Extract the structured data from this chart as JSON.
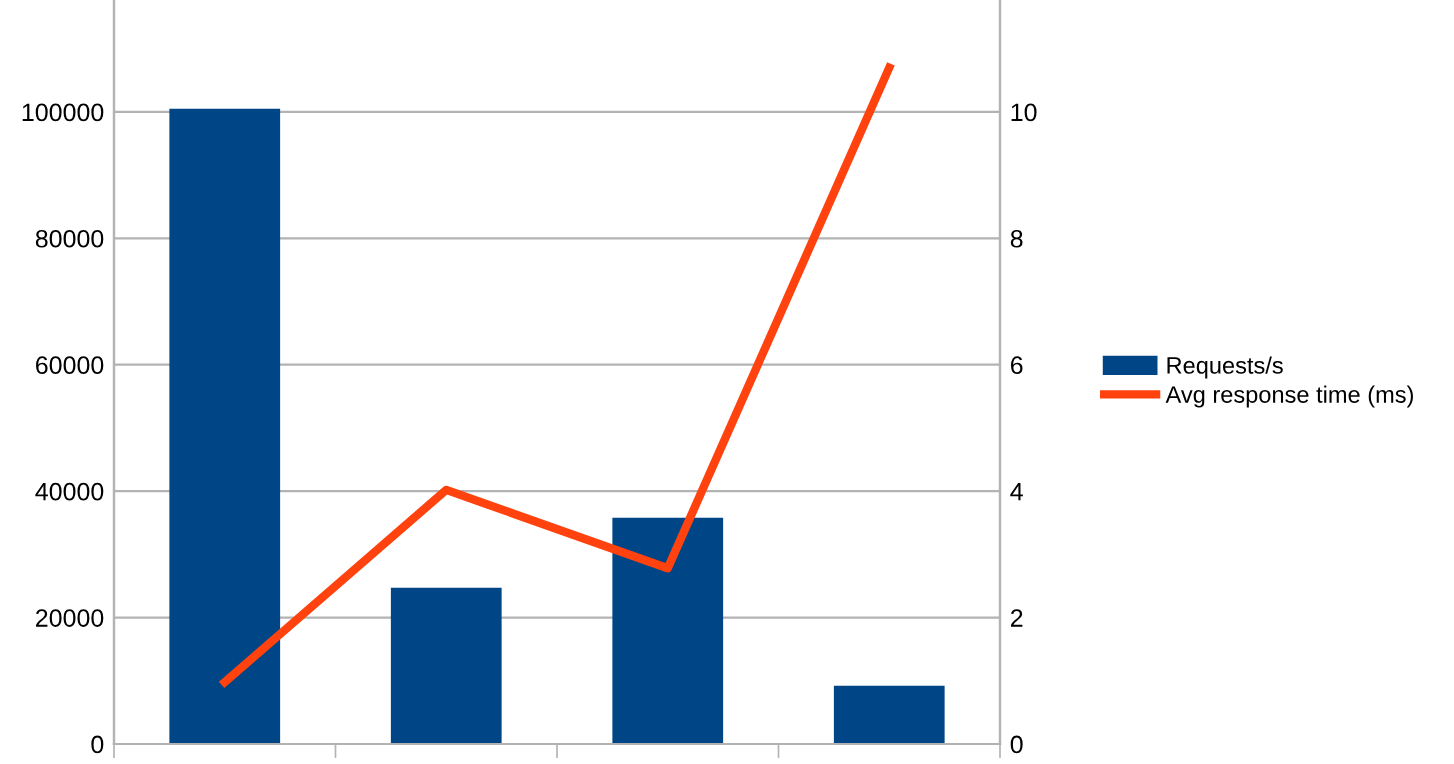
{
  "chart_data": {
    "type": "bar",
    "categories": [
      null,
      null,
      null,
      null
    ],
    "series": [
      {
        "name": "Requests/s",
        "color": "#004586",
        "values": [
          100500,
          24700,
          35800,
          9200
        ]
      },
      {
        "name": "Avg response time (ms)",
        "type": "line",
        "axis": "y2",
        "color": "#ff420e",
        "values": [
          0.98,
          4.02,
          2.78,
          10.7
        ]
      }
    ],
    "ylim": [
      0,
      117700
    ],
    "yticks": [
      0,
      20000,
      40000,
      60000,
      80000,
      100000
    ],
    "y2lim": [
      0,
      11.77
    ],
    "y2ticks": [
      0,
      2,
      4,
      6,
      8,
      10
    ],
    "grid": "y",
    "legend": "right",
    "marker": "none",
    "line_style": "solid"
  }
}
